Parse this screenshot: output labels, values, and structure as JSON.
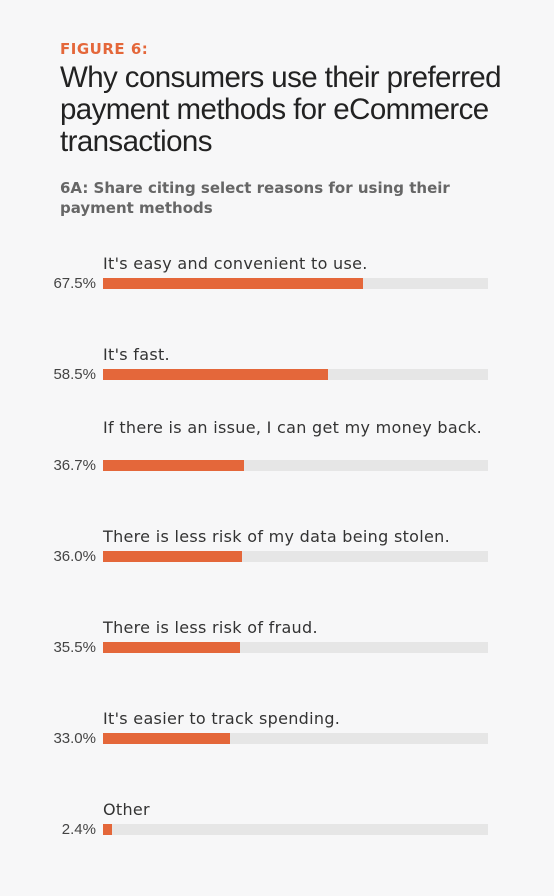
{
  "figure_label": "FIGURE 6:",
  "title": "Why consumers use their preferred payment methods for eCommerce transactions",
  "subtitle": "6A: Share citing select reasons for using their payment methods",
  "colors": {
    "accent": "#e4673a",
    "track": "#e6e6e6"
  },
  "chart_data": {
    "type": "bar",
    "orientation": "horizontal",
    "title": "Why consumers use their preferred payment methods for eCommerce transactions",
    "subtitle": "6A: Share citing select reasons for using their payment methods",
    "xlim": [
      0,
      100
    ],
    "grid": false,
    "categories": [
      "It's easy and convenient to use.",
      "It's fast.",
      "If there is an issue, I can get my money back.",
      "There is less risk of my data being stolen.",
      "There is less risk of fraud.",
      "It's easier to track spending.",
      "Other"
    ],
    "values": [
      67.5,
      58.5,
      36.7,
      36.0,
      35.5,
      33.0,
      2.4
    ],
    "value_labels": [
      "67.5%",
      "58.5%",
      "36.7%",
      "36.0%",
      "35.5%",
      "33.0%",
      "2.4%"
    ]
  }
}
